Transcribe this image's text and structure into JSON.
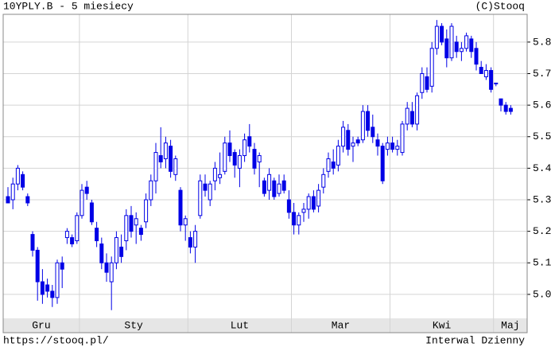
{
  "chart_data": {
    "type": "candlestick",
    "title": "10YPLY.B - 5 miesiecy",
    "source": "(C)Stooq",
    "url": "https://stooq.pl/",
    "interval": "Interwal Dzienny",
    "color": "#0000e6",
    "grid": true,
    "categories": [
      "Gru",
      null,
      null,
      null,
      null,
      null,
      null,
      null,
      null,
      null,
      null,
      null,
      null,
      null,
      null,
      "Sty",
      null,
      null,
      null,
      null,
      null,
      null,
      null,
      null,
      null,
      null,
      null,
      null,
      null,
      null,
      null,
      null,
      null,
      null,
      null,
      null,
      null,
      "Lut",
      null,
      null,
      null,
      null,
      null,
      null,
      null,
      null,
      null,
      null,
      null,
      null,
      null,
      null,
      null,
      null,
      null,
      null,
      null,
      null,
      "Mar",
      null,
      null,
      null,
      null,
      null,
      null,
      null,
      null,
      null,
      null,
      null,
      null,
      null,
      null,
      null,
      null,
      null,
      null,
      null,
      "Kwi",
      null,
      null,
      null,
      null,
      null,
      null,
      null,
      null,
      null,
      null,
      null,
      null,
      null,
      null,
      null,
      null,
      null,
      null,
      null,
      null,
      "Maj",
      null,
      null,
      null
    ],
    "open": [
      5.31,
      5.3,
      5.35,
      5.38,
      5.31,
      5.19,
      5.14,
      5.04,
      5.03,
      5.01,
      4.99,
      5.1,
      5.18,
      5.18,
      5.17,
      5.25,
      5.34,
      5.29,
      5.21,
      5.16,
      5.1,
      5.04,
      5.1,
      5.15,
      5.17,
      5.25,
      5.22,
      5.21,
      5.23,
      5.3,
      5.36,
      5.44,
      5.43,
      5.47,
      5.38,
      5.33,
      5.22,
      5.18,
      5.15,
      5.25,
      5.35,
      5.3,
      5.36,
      5.37,
      5.39,
      5.48,
      5.45,
      5.4,
      5.44,
      5.5,
      5.46,
      5.42,
      5.36,
      5.33,
      5.36,
      5.32,
      5.36,
      5.3,
      5.26,
      5.22,
      5.26,
      5.27,
      5.31,
      5.28,
      5.34,
      5.39,
      5.42,
      5.41,
      5.47,
      5.52,
      5.47,
      5.49,
      5.49,
      5.58,
      5.53,
      5.49,
      5.47,
      5.46,
      5.48,
      5.46,
      5.45,
      5.54,
      5.58,
      5.54,
      5.64,
      5.69,
      5.66,
      5.78,
      5.85,
      5.81,
      5.75,
      5.8,
      5.77,
      5.78,
      5.81,
      5.78,
      5.72,
      5.69,
      5.71,
      5.67,
      5.62,
      5.6,
      5.59
    ],
    "high": [
      5.34,
      5.37,
      5.41,
      5.39,
      5.32,
      5.2,
      5.15,
      5.08,
      5.05,
      5.03,
      5.11,
      5.12,
      5.21,
      5.19,
      5.26,
      5.35,
      5.36,
      5.3,
      5.23,
      5.18,
      5.13,
      5.12,
      5.2,
      5.19,
      5.27,
      5.28,
      5.26,
      5.22,
      5.32,
      5.38,
      5.48,
      5.53,
      5.5,
      5.49,
      5.44,
      5.34,
      5.25,
      5.2,
      5.22,
      5.38,
      5.38,
      5.36,
      5.42,
      5.45,
      5.5,
      5.52,
      5.46,
      5.46,
      5.51,
      5.54,
      5.48,
      5.45,
      5.37,
      5.4,
      5.37,
      5.38,
      5.38,
      5.33,
      5.29,
      5.26,
      5.29,
      5.32,
      5.33,
      5.35,
      5.4,
      5.45,
      5.46,
      5.49,
      5.55,
      5.54,
      5.5,
      5.5,
      5.6,
      5.6,
      5.57,
      5.51,
      5.48,
      5.5,
      5.5,
      5.49,
      5.55,
      5.61,
      5.61,
      5.64,
      5.72,
      5.72,
      5.8,
      5.87,
      5.86,
      5.84,
      5.86,
      5.82,
      5.8,
      5.83,
      5.82,
      5.8,
      5.74,
      5.73,
      5.72,
      5.67,
      5.62,
      5.61,
      5.6
    ],
    "low": [
      5.29,
      5.27,
      5.33,
      5.33,
      5.28,
      5.12,
      4.98,
      4.97,
      4.99,
      4.96,
      4.97,
      5.02,
      5.16,
      5.15,
      5.16,
      5.24,
      5.3,
      5.22,
      5.15,
      5.08,
      5.04,
      4.95,
      5.08,
      5.1,
      5.14,
      5.18,
      5.16,
      5.17,
      5.21,
      5.28,
      5.32,
      5.4,
      5.4,
      5.37,
      5.36,
      5.2,
      5.17,
      5.13,
      5.1,
      5.24,
      5.31,
      5.28,
      5.33,
      5.35,
      5.38,
      5.42,
      5.37,
      5.34,
      5.42,
      5.45,
      5.38,
      5.34,
      5.31,
      5.3,
      5.3,
      5.31,
      5.32,
      5.24,
      5.19,
      5.19,
      5.23,
      5.24,
      5.26,
      5.26,
      5.32,
      5.37,
      5.38,
      5.39,
      5.45,
      5.44,
      5.42,
      5.47,
      5.48,
      5.5,
      5.48,
      5.44,
      5.35,
      5.44,
      5.45,
      5.44,
      5.44,
      5.52,
      5.53,
      5.52,
      5.62,
      5.64,
      5.64,
      5.76,
      5.79,
      5.72,
      5.74,
      5.75,
      5.74,
      5.77,
      5.75,
      5.71,
      5.7,
      5.68,
      5.64,
      5.66,
      5.58,
      5.57,
      5.57
    ],
    "close": [
      5.29,
      5.35,
      5.4,
      5.34,
      5.29,
      5.14,
      5.04,
      5.0,
      5.01,
      4.99,
      5.1,
      5.08,
      5.2,
      5.16,
      5.25,
      5.33,
      5.32,
      5.23,
      5.17,
      5.1,
      5.07,
      5.1,
      5.18,
      5.12,
      5.25,
      5.2,
      5.24,
      5.19,
      5.3,
      5.36,
      5.45,
      5.42,
      5.48,
      5.39,
      5.43,
      5.22,
      5.24,
      5.15,
      5.2,
      5.36,
      5.33,
      5.35,
      5.4,
      5.38,
      5.48,
      5.44,
      5.41,
      5.44,
      5.49,
      5.47,
      5.4,
      5.44,
      5.32,
      5.38,
      5.31,
      5.35,
      5.33,
      5.26,
      5.22,
      5.25,
      5.27,
      5.31,
      5.27,
      5.33,
      5.38,
      5.43,
      5.4,
      5.47,
      5.53,
      5.46,
      5.48,
      5.48,
      5.58,
      5.52,
      5.5,
      5.47,
      5.36,
      5.48,
      5.46,
      5.47,
      5.54,
      5.59,
      5.54,
      5.63,
      5.7,
      5.65,
      5.78,
      5.85,
      5.8,
      5.75,
      5.85,
      5.77,
      5.78,
      5.82,
      5.77,
      5.73,
      5.7,
      5.71,
      5.65,
      5.67,
      5.6,
      5.58,
      5.58
    ],
    "ylim": [
      4.924,
      5.888
    ],
    "yticks": [
      {
        "value": 5,
        "label": "5.0"
      },
      5.1,
      5.2,
      5.3,
      5.4,
      5.5,
      5.6,
      5.7,
      5.8
    ]
  }
}
